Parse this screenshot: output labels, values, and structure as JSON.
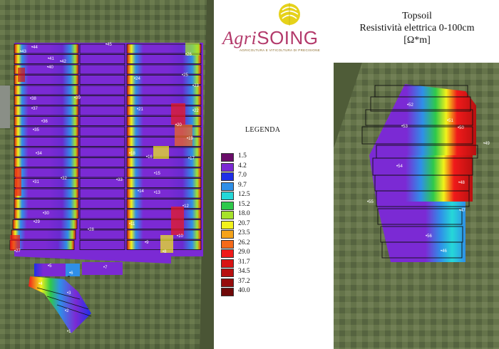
{
  "logo": {
    "brand_agri": "Agri",
    "brand_soing": "SOING",
    "tagline": "AGRICOLTURA E VITICOLTURA DI PRECISIONE"
  },
  "title": {
    "line1": "Topsoil",
    "line2": "Resistività elettrica 0-100cm",
    "line3": "[Ω*m]"
  },
  "legend": {
    "title": "LEGENDA",
    "items": [
      {
        "value": "1.5",
        "color": "#6a0d6a"
      },
      {
        "value": "4.2",
        "color": "#7b2ad4"
      },
      {
        "value": "7.0",
        "color": "#1e2fe8"
      },
      {
        "value": "9.7",
        "color": "#2f8fe8"
      },
      {
        "value": "12.5",
        "color": "#25d8d8"
      },
      {
        "value": "15.2",
        "color": "#2ec94a"
      },
      {
        "value": "18.0",
        "color": "#a6e22a"
      },
      {
        "value": "20.7",
        "color": "#f2f21a"
      },
      {
        "value": "23.5",
        "color": "#f5a31a"
      },
      {
        "value": "26.2",
        "color": "#f56a1a"
      },
      {
        "value": "29.0",
        "color": "#f01a1a"
      },
      {
        "value": "31.7",
        "color": "#d81414"
      },
      {
        "value": "34.5",
        "color": "#b81010"
      },
      {
        "value": "37.2",
        "color": "#960c0c"
      },
      {
        "value": "40.0",
        "color": "#700808"
      }
    ]
  },
  "plots_left": [
    "43",
    "44",
    "41",
    "42",
    "40",
    "45",
    "26",
    "25",
    "24",
    "23",
    "39",
    "38",
    "37",
    "22",
    "21",
    "36",
    "35",
    "20",
    "19",
    "18",
    "17",
    "16",
    "34",
    "15",
    "33",
    "32",
    "31",
    "14",
    "13",
    "12",
    "30",
    "29",
    "11",
    "28",
    "10",
    "9",
    "27",
    "8",
    "5",
    "6",
    "7",
    "4",
    "3",
    "2",
    "1"
  ],
  "plots_right": [
    "52",
    "53",
    "51",
    "50",
    "49",
    "54",
    "48",
    "55",
    "47",
    "56",
    "46"
  ]
}
